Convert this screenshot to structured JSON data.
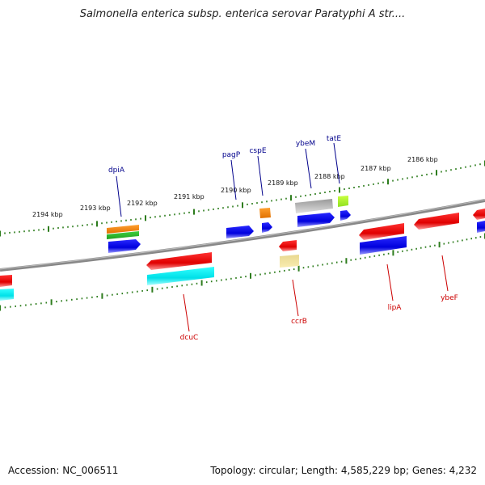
{
  "title": "Salmonella enterica subsp. enterica serovar Paratyphi A str....",
  "footer": {
    "accession": "Accession: NC_006511",
    "topology": "Topology: circular; Length: 4,585,229 bp; Genes: 4,232"
  },
  "colors": {
    "forward_label": "#00008b",
    "reverse_label": "#cc0000",
    "tick": "#2e7d1e",
    "backbone": "#777777"
  },
  "kbp_labels": [
    "2194 kbp",
    "2193 kbp",
    "2192 kbp",
    "2191 kbp",
    "2190 kbp",
    "2189 kbp",
    "2188 kbp",
    "2187 kbp",
    "2186 kbp"
  ],
  "forward_genes": [
    "dpiA",
    "pagP",
    "cspE",
    "ybeM",
    "tatE"
  ],
  "reverse_genes": [
    "dcuC",
    "ccrB",
    "lipA",
    "ybeF"
  ]
}
